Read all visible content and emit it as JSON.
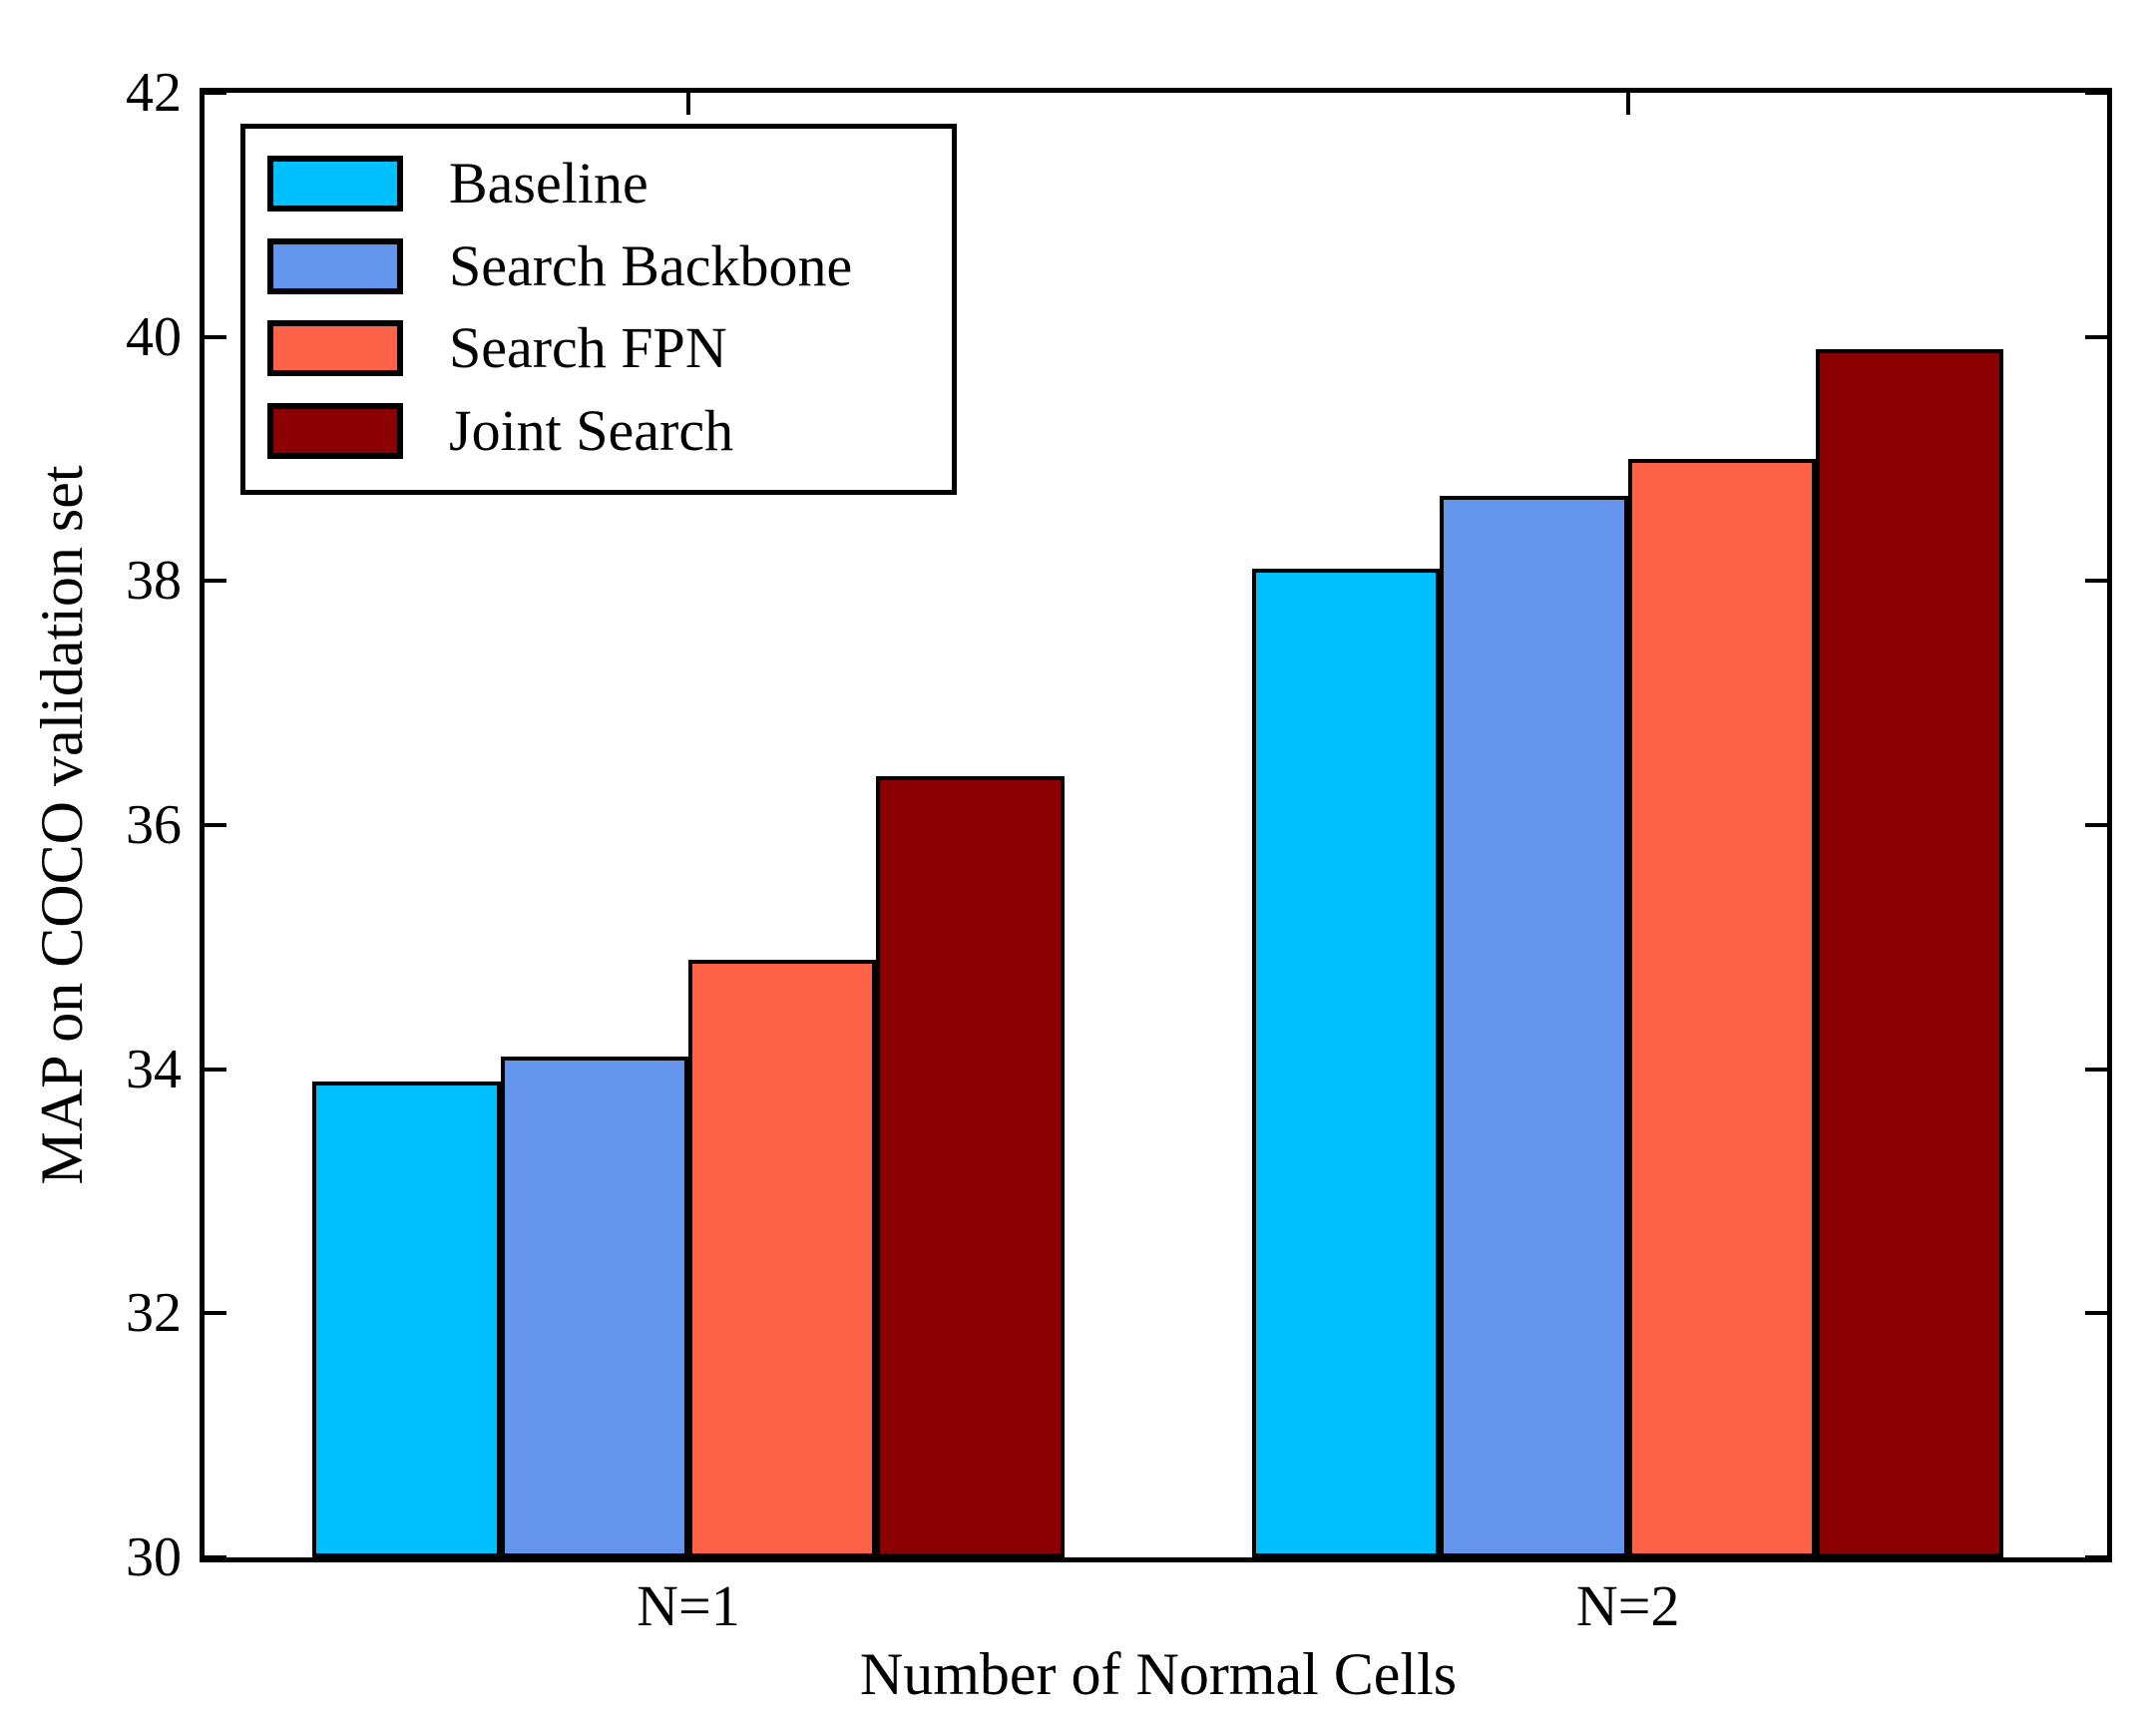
{
  "chart_data": {
    "type": "bar",
    "title": "",
    "xlabel": "Number of Normal Cells",
    "ylabel": "MAP on COCO validation set",
    "categories": [
      "N=1",
      "N=2"
    ],
    "series": [
      {
        "name": "Baseline",
        "color": "#00BFFF",
        "values": [
          33.9,
          38.1
        ]
      },
      {
        "name": "Search Backbone",
        "color": "#6495ED",
        "values": [
          34.1,
          38.7
        ]
      },
      {
        "name": "Search FPN",
        "color": "#FF6347",
        "values": [
          34.9,
          39.0
        ]
      },
      {
        "name": "Joint Search",
        "color": "#8B0000",
        "values": [
          36.4,
          39.9
        ]
      }
    ],
    "ylim": [
      30,
      42
    ],
    "yticks": [
      30,
      32,
      34,
      36,
      38,
      40,
      42
    ],
    "grid": false,
    "legend_position": "upper left",
    "bar_edge_color": "#000000",
    "background_color": "#FFFFFF"
  }
}
